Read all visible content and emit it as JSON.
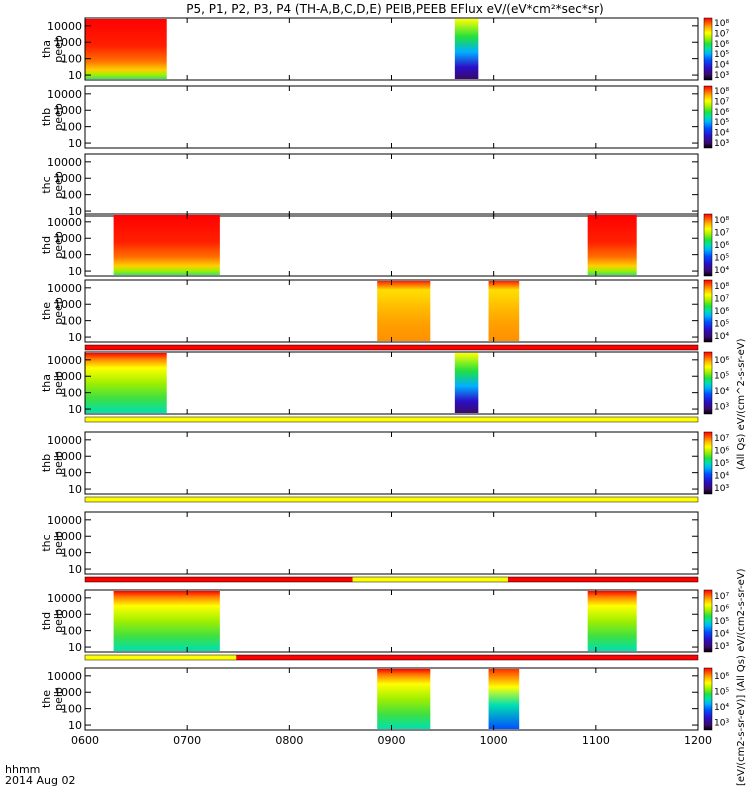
{
  "chart_data": {
    "type": "heatmap",
    "title": "P5, P1, P2, P3, P4 (TH-A,B,C,D,E) PEIB,PEEB EFlux eV/(eV*cm²*sec*sr)",
    "x_range": [
      6.0,
      12.0
    ],
    "x_ticks": [
      "0600",
      "0700",
      "0800",
      "0900",
      "1000",
      "1100",
      "1200"
    ],
    "x_tick_values": [
      6,
      7,
      8,
      9,
      10,
      11,
      12
    ],
    "x_label": [
      "hhmm",
      "2014 Aug 02"
    ],
    "y_ticks": [
      "10",
      "100",
      "1000",
      "10000"
    ],
    "y_tick_values": [
      10,
      100,
      1000,
      10000
    ],
    "y_range": [
      5,
      30000
    ],
    "panels": [
      {
        "probe": "tha",
        "species": "peeb",
        "label": [
          "tha",
          "peeb"
        ],
        "colorbar": {
          "min": 3,
          "max": 8,
          "labels": [
            "10³",
            "10⁴",
            "10⁵",
            "10⁶",
            "10⁷",
            "10⁸"
          ]
        },
        "blocks": [
          {
            "t0": 6.0,
            "t1": 6.8,
            "level": "high"
          },
          {
            "t0": 9.62,
            "t1": 9.85,
            "level": "mixed"
          }
        ]
      },
      {
        "probe": "thb",
        "species": "peeb",
        "label": [
          "thb",
          "peeb"
        ],
        "colorbar": {
          "min": 3,
          "max": 8,
          "labels": [
            "10³",
            "10⁴",
            "10⁵",
            "10⁶",
            "10⁷",
            "10⁸"
          ]
        },
        "blocks": []
      },
      {
        "probe": "thc",
        "species": "peeb",
        "label": [
          "thc",
          "peeb"
        ],
        "colorbar": null,
        "blocks": []
      },
      {
        "probe": "thd",
        "species": "peeb",
        "label": [
          "thd",
          "peeb"
        ],
        "colorbar": {
          "min": 3,
          "max": 8,
          "labels": [
            "10⁴",
            "10⁵",
            "10⁶",
            "10⁷",
            "10⁸"
          ]
        },
        "blocks": [
          {
            "t0": 6.28,
            "t1": 7.32,
            "level": "high"
          },
          {
            "t0": 10.92,
            "t1": 11.4,
            "level": "high"
          }
        ]
      },
      {
        "probe": "the",
        "species": "peeb",
        "label": [
          "the",
          "peeb"
        ],
        "colorbar": {
          "min": 3,
          "max": 8,
          "labels": [
            "10⁴",
            "10⁵",
            "10⁶",
            "10⁷",
            "10⁸"
          ]
        },
        "blocks": [
          {
            "t0": 8.86,
            "t1": 9.38,
            "level": "mid"
          },
          {
            "t0": 9.95,
            "t1": 10.25,
            "level": "mid"
          }
        ]
      },
      {
        "probe": "tha",
        "species": "peib",
        "label": [
          "tha",
          "peib"
        ],
        "colorbar": {
          "min": 3,
          "max": 7,
          "labels": [
            "10³",
            "10⁴",
            "10⁵",
            "10⁶"
          ]
        },
        "blocks": [
          {
            "t0": 6.0,
            "t1": 6.8,
            "level": "ion"
          },
          {
            "t0": 9.62,
            "t1": 9.85,
            "level": "mixed"
          }
        ]
      },
      {
        "probe": "thb",
        "species": "peib",
        "label": [
          "thb",
          "peib"
        ],
        "colorbar": {
          "min": 3,
          "max": 7,
          "labels": [
            "10³",
            "10⁴",
            "10⁵",
            "10⁶",
            "10⁷"
          ]
        },
        "blocks": []
      },
      {
        "probe": "thc",
        "species": "peib",
        "label": [
          "thc",
          "peib"
        ],
        "colorbar": null,
        "blocks": []
      },
      {
        "probe": "thd",
        "species": "peib",
        "label": [
          "thd",
          "peib"
        ],
        "colorbar": {
          "min": 3,
          "max": 7,
          "labels": [
            "10³",
            "10⁴",
            "10⁵",
            "10⁶",
            "10⁷"
          ]
        },
        "blocks": [
          {
            "t0": 6.28,
            "t1": 7.32,
            "level": "ion"
          },
          {
            "t0": 10.92,
            "t1": 11.4,
            "level": "ion"
          }
        ]
      },
      {
        "probe": "the",
        "species": "peib",
        "label": [
          "the",
          "peib"
        ],
        "colorbar": {
          "min": 3,
          "max": 7,
          "labels": [
            "10³",
            "10⁴",
            "10⁵",
            "10⁶"
          ]
        },
        "blocks": [
          {
            "t0": 8.86,
            "t1": 9.38,
            "level": "ion"
          },
          {
            "t0": 9.95,
            "t1": 10.25,
            "level": "ionlow"
          }
        ]
      }
    ],
    "mode_bars": [
      {
        "after_panel": 4,
        "segments": [
          {
            "t0": 6.0,
            "t1": 12.0,
            "color": "#ff0000"
          }
        ]
      },
      {
        "after_panel": 5,
        "segments": [
          {
            "t0": 6.0,
            "t1": 12.0,
            "color": "#ffff00"
          }
        ]
      },
      {
        "after_panel": 6,
        "segments": [
          {
            "t0": 6.0,
            "t1": 12.0,
            "color": "#ffff00"
          }
        ]
      },
      {
        "after_panel": 7,
        "segments": [
          {
            "t0": 6.0,
            "t1": 8.62,
            "color": "#ff0000"
          },
          {
            "t0": 8.62,
            "t1": 10.14,
            "color": "#ffff00"
          },
          {
            "t0": 10.14,
            "t1": 12.0,
            "color": "#ff0000"
          }
        ]
      },
      {
        "after_panel": 8,
        "segments": [
          {
            "t0": 6.0,
            "t1": 7.48,
            "color": "#ffff00"
          },
          {
            "t0": 7.48,
            "t1": 12.0,
            "color": "#ff0000"
          }
        ]
      }
    ],
    "colorbar_titles": [
      "(All Qs) eV/(cm^2-s-sr-eV)",
      "[eV/(cm2-s-sr-eV)] (All Qs) eV/(cm2-s-sr-eV)"
    ],
    "colors": {
      "palette": [
        "#000000",
        "#3a0a6a",
        "#2a10c8",
        "#0050ff",
        "#00b0ff",
        "#00e0b0",
        "#20e040",
        "#a0f000",
        "#ffff00",
        "#ffb000",
        "#ff5000",
        "#ff0000"
      ]
    }
  }
}
